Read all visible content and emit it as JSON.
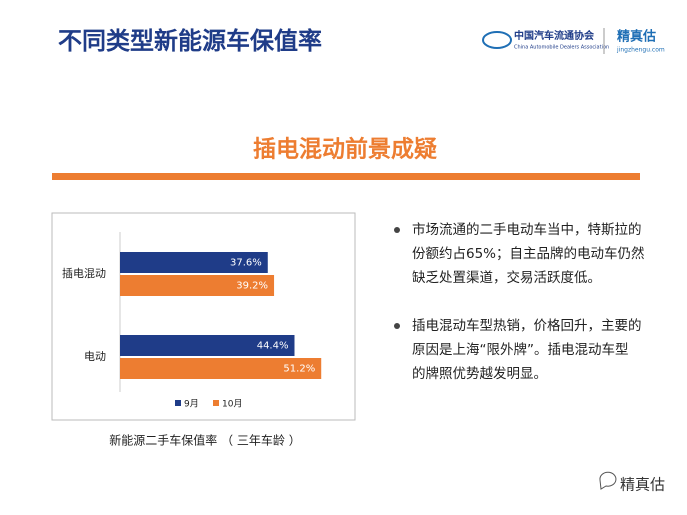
{
  "header": {
    "title": "不同类型新能源车保值率",
    "logo_cn": "中国汽车流通协会",
    "logo_en": "China Automobile Dealers Association",
    "brand": "精真估",
    "brand_url": "jingzhengu.com"
  },
  "section": {
    "title": "插电混动前景成疑"
  },
  "bullets": [
    [
      "市场流通的二手电动车当中，特斯拉的",
      "份额约占65%；自主品牌的电动车仍然",
      "缺乏处置渠道，交易活跃度低。"
    ],
    [
      "插电混动车型热销，价格回升，主要的",
      "原因是上海“限外牌”。插电混动车型",
      "的牌照优势越发明显。"
    ]
  ],
  "chart_data": {
    "type": "hbar",
    "title": "新能源二手车保值率 （ 三年车龄 ）",
    "categories": [
      "插电混动",
      "电动"
    ],
    "series": [
      {
        "name": "9月",
        "color": "#1f3c88",
        "values": [
          37.6,
          44.4
        ],
        "value_labels": [
          "37.6%",
          "44.4%"
        ]
      },
      {
        "name": "10月",
        "color": "#ed7d31",
        "values": [
          39.2,
          51.2
        ],
        "value_labels": [
          "39.2%",
          "51.2%"
        ]
      }
    ]
  },
  "footer": {
    "brand": "精真估"
  }
}
